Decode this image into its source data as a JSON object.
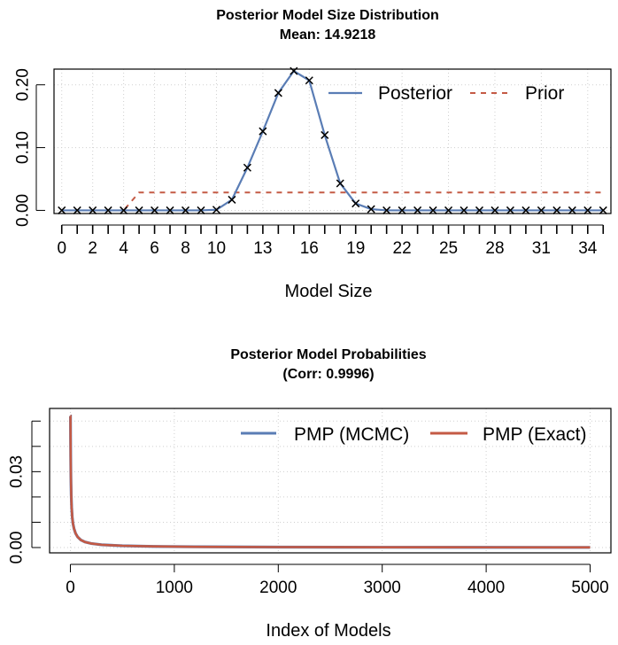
{
  "chart_data": [
    {
      "type": "line",
      "title": "Posterior Model Size Distribution",
      "subtitle": "Mean: 14.9218",
      "xlabel": "Model Size",
      "ylabel": "",
      "xlim": [
        -0.5,
        35.5
      ],
      "ylim": [
        -0.005,
        0.225
      ],
      "x_tick_labels": [
        0,
        2,
        4,
        6,
        8,
        10,
        13,
        16,
        19,
        22,
        25,
        28,
        31,
        34
      ],
      "x_minor_ticks": [
        1,
        3,
        5,
        7,
        9,
        11,
        12,
        14,
        15,
        17,
        18,
        20,
        21,
        23,
        24,
        26,
        27,
        29,
        30,
        32,
        33,
        35
      ],
      "y_ticks": [
        0.0,
        0.1,
        0.2
      ],
      "y_tick_labels": [
        "0.00",
        "0.10",
        "0.20"
      ],
      "grid": true,
      "legend_position": "top-right",
      "x": [
        0,
        1,
        2,
        3,
        4,
        5,
        6,
        7,
        8,
        9,
        10,
        11,
        12,
        13,
        14,
        15,
        16,
        17,
        18,
        19,
        20,
        21,
        22,
        23,
        24,
        25,
        26,
        27,
        28,
        29,
        30,
        31,
        32,
        33,
        34,
        35
      ],
      "series": [
        {
          "name": "Posterior",
          "style": "solid",
          "marker": "x",
          "color": "#5a7db5",
          "values": [
            0,
            0,
            0,
            0,
            0,
            0,
            0,
            0,
            0,
            0,
            0.001,
            0.017,
            0.068,
            0.126,
            0.187,
            0.222,
            0.207,
            0.12,
            0.043,
            0.011,
            0.002,
            0,
            0,
            0,
            0,
            0,
            0,
            0,
            0,
            0,
            0,
            0,
            0,
            0,
            0,
            0
          ]
        },
        {
          "name": "Prior",
          "style": "dashed",
          "color": "#c45a45",
          "values": [
            0,
            0,
            0,
            0,
            0,
            0.0286,
            0.0286,
            0.0286,
            0.0286,
            0.0286,
            0.0286,
            0.0286,
            0.0286,
            0.0286,
            0.0286,
            0.0286,
            0.0286,
            0.0286,
            0.0286,
            0.0286,
            0.0286,
            0.0286,
            0.0286,
            0.0286,
            0.0286,
            0.0286,
            0.0286,
            0.0286,
            0.0286,
            0.0286,
            0.0286,
            0.0286,
            0.0286,
            0.0286,
            0.0286,
            0.0286
          ]
        }
      ]
    },
    {
      "type": "line",
      "title": "Posterior Model Probabilities",
      "subtitle": "(Corr: 0.9996)",
      "xlabel": "Index of Models",
      "ylabel": "",
      "xlim": [
        -200,
        5200
      ],
      "ylim": [
        -0.0021,
        0.055
      ],
      "x_ticks": [
        0,
        1000,
        2000,
        3000,
        4000,
        5000
      ],
      "x_tick_labels": [
        "0",
        "1000",
        "2000",
        "3000",
        "4000",
        "5000"
      ],
      "y_ticks": [
        0.0,
        0.01,
        0.02,
        0.03,
        0.04,
        0.05
      ],
      "y_tick_labels": [
        "0.00",
        "",
        "",
        "0.03",
        "",
        ""
      ],
      "grid": true,
      "legend_position": "top-right",
      "n_models": 5000,
      "curve_points": [
        [
          1,
          0.052
        ],
        [
          2,
          0.043
        ],
        [
          3,
          0.036
        ],
        [
          5,
          0.028
        ],
        [
          8,
          0.021
        ],
        [
          12,
          0.016
        ],
        [
          18,
          0.012
        ],
        [
          25,
          0.0095
        ],
        [
          35,
          0.0075
        ],
        [
          50,
          0.0056
        ],
        [
          70,
          0.0042
        ],
        [
          100,
          0.003
        ],
        [
          140,
          0.0022
        ],
        [
          200,
          0.0016
        ],
        [
          300,
          0.0011
        ],
        [
          500,
          0.0007
        ],
        [
          800,
          0.00045
        ],
        [
          1200,
          0.0003
        ],
        [
          2000,
          0.00018
        ],
        [
          3000,
          0.00012
        ],
        [
          4000,
          9e-05
        ],
        [
          5000,
          7e-05
        ]
      ],
      "series": [
        {
          "name": "PMP (MCMC)",
          "color": "#5a7db5"
        },
        {
          "name": "PMP (Exact)",
          "color": "#c45a45"
        }
      ]
    }
  ]
}
